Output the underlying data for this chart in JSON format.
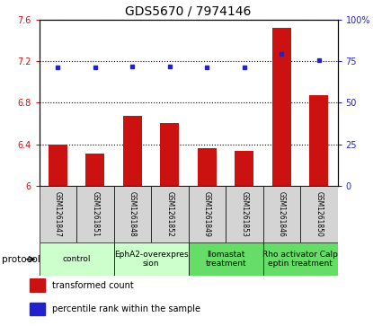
{
  "title": "GDS5670 / 7974146",
  "samples": [
    "GSM1261847",
    "GSM1261851",
    "GSM1261848",
    "GSM1261852",
    "GSM1261849",
    "GSM1261853",
    "GSM1261846",
    "GSM1261850"
  ],
  "transformed_count": [
    6.4,
    6.31,
    6.67,
    6.6,
    6.36,
    6.34,
    7.52,
    6.87
  ],
  "percentile_rank": [
    71.5,
    71.0,
    72.0,
    72.0,
    71.3,
    71.3,
    79.5,
    75.5
  ],
  "ylim_left": [
    6.0,
    7.6
  ],
  "ylim_right": [
    0,
    100
  ],
  "yticks_left": [
    6.0,
    6.4,
    6.8,
    7.2,
    7.6
  ],
  "yticks_right": [
    0,
    25,
    50,
    75,
    100
  ],
  "ytick_labels_left": [
    "6",
    "6.4",
    "6.8",
    "7.2",
    "7.6"
  ],
  "ytick_labels_right": [
    "0",
    "25",
    "50",
    "75",
    "100%"
  ],
  "bar_color": "#cc1111",
  "dot_color": "#2222cc",
  "protocol_groups": [
    {
      "label": "control",
      "start": 0,
      "end": 1,
      "color": "#ccffcc"
    },
    {
      "label": "EphA2-overexpres\nsion",
      "start": 2,
      "end": 3,
      "color": "#ccffcc"
    },
    {
      "label": "llomastat\ntreatment",
      "start": 4,
      "end": 5,
      "color": "#66dd66"
    },
    {
      "label": "Rho activator Calp\neptin treatment",
      "start": 6,
      "end": 7,
      "color": "#66dd66"
    }
  ],
  "protocol_label": "protocol",
  "legend_bar": "transformed count",
  "legend_dot": "percentile rank within the sample",
  "bar_width": 0.5,
  "title_fontsize": 10,
  "tick_fontsize": 7,
  "sample_fontsize": 5.5,
  "proto_fontsize": 6.5,
  "legend_fontsize": 7
}
